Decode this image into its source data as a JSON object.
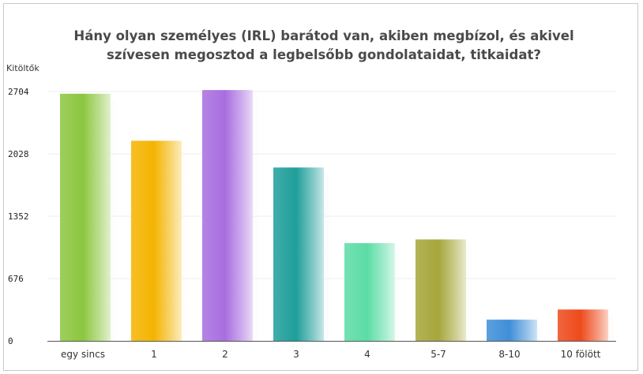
{
  "chart_data": {
    "type": "bar",
    "title": "Hány olyan személyes (IRL) barátod van, akiben megbízol, és akivel szívesen megosztod a legbelsőbb gondolataidat, titkaidat?",
    "ylabel": "Kitöltők",
    "xlabel": "",
    "ylim": [
      0,
      2704
    ],
    "yticks": [
      0,
      676,
      1352,
      2028,
      2704
    ],
    "grid": true,
    "categories": [
      "egy sincs",
      "1",
      "2",
      "3",
      "4",
      "5-7",
      "8-10",
      "10 fölött"
    ],
    "values": [
      2680,
      2170,
      2720,
      1880,
      1060,
      1100,
      230,
      340
    ],
    "colors": [
      "#8cc63f",
      "#f4b400",
      "#a86ee0",
      "#1f9e9b",
      "#5cdca6",
      "#a6a63b",
      "#3f8fd8",
      "#ee4a1c"
    ]
  }
}
